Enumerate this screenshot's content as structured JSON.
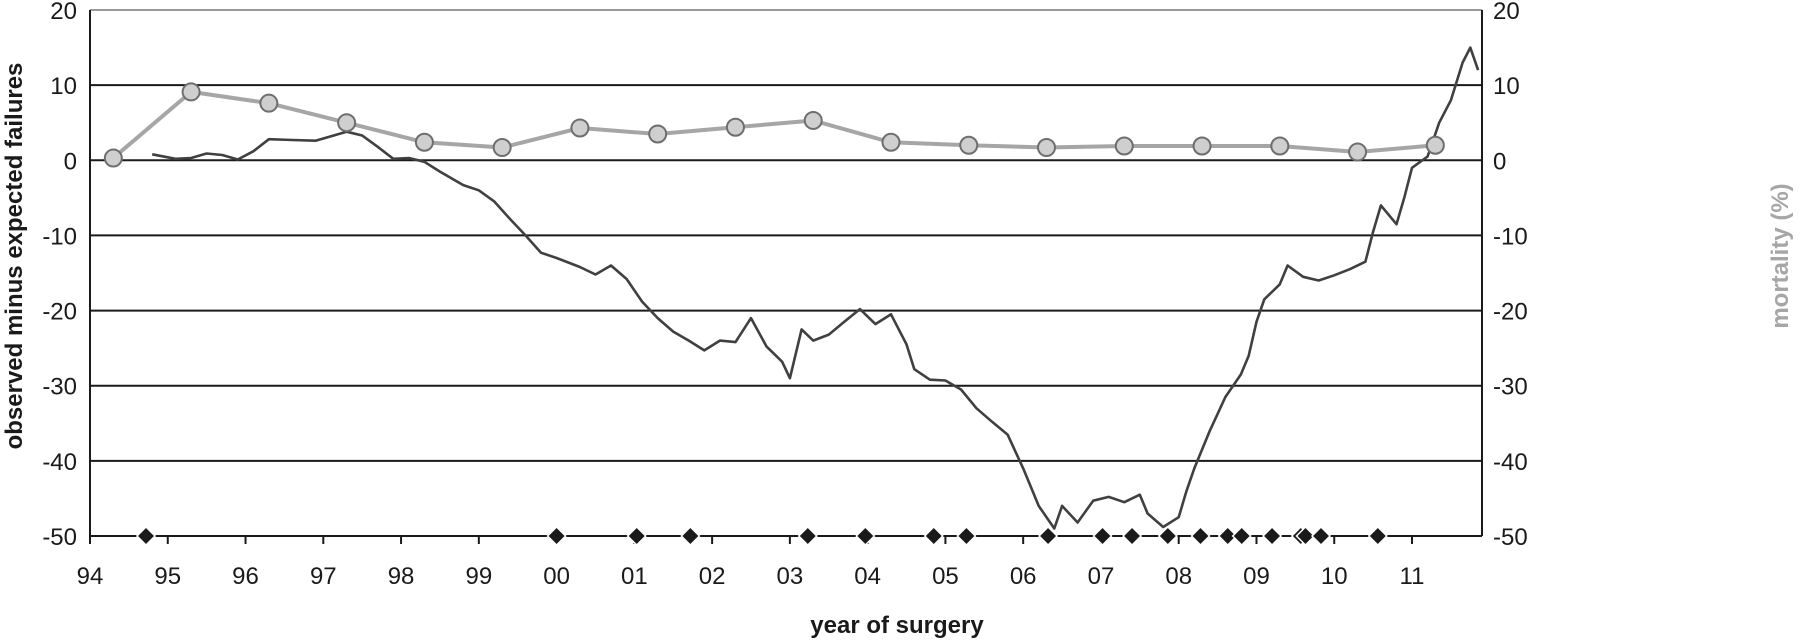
{
  "chart_data": {
    "type": "line",
    "title": "",
    "xlabel": "year of surgery",
    "ylabel_left": "observed minus expected failures",
    "ylabel_right": "mortality (%)",
    "ylim": [
      -50,
      20
    ],
    "y_ticks": [
      "20",
      "10",
      "0",
      "-10",
      "-20",
      "-30",
      "-40",
      "-50"
    ],
    "y_ticks_right": [
      "20",
      "10",
      "0",
      "-10",
      "-20",
      "-30",
      "-40",
      "-50"
    ],
    "x_range": [
      1994,
      2011.9
    ],
    "x_ticks": [
      {
        "label": "94",
        "x": 1994
      },
      {
        "label": "95",
        "x": 1995
      },
      {
        "label": "96",
        "x": 1996
      },
      {
        "label": "97",
        "x": 1997
      },
      {
        "label": "98",
        "x": 1998
      },
      {
        "label": "99",
        "x": 1999
      },
      {
        "label": "00",
        "x": 2000
      },
      {
        "label": "01",
        "x": 2001
      },
      {
        "label": "02",
        "x": 2002
      },
      {
        "label": "03",
        "x": 2003
      },
      {
        "label": "04",
        "x": 2004
      },
      {
        "label": "05",
        "x": 2005
      },
      {
        "label": "06",
        "x": 2006
      },
      {
        "label": "07",
        "x": 2007
      },
      {
        "label": "08",
        "x": 2008
      },
      {
        "label": "09",
        "x": 2009
      },
      {
        "label": "10",
        "x": 2010
      },
      {
        "label": "11",
        "x": 2011
      }
    ],
    "grid": true,
    "series": [
      {
        "role": "cusum",
        "color": "#404040",
        "points": [
          [
            1994.8,
            0.8
          ],
          [
            1995.1,
            0.2
          ],
          [
            1995.3,
            0.3
          ],
          [
            1995.5,
            0.9
          ],
          [
            1995.7,
            0.7
          ],
          [
            1995.9,
            0.1
          ],
          [
            1996.1,
            1.2
          ],
          [
            1996.3,
            2.8
          ],
          [
            1996.6,
            2.7
          ],
          [
            1996.9,
            2.6
          ],
          [
            1997.1,
            3.2
          ],
          [
            1997.3,
            3.8
          ],
          [
            1997.5,
            3.3
          ],
          [
            1997.7,
            1.8
          ],
          [
            1997.9,
            0.2
          ],
          [
            1998.1,
            0.3
          ],
          [
            1998.3,
            -0.2
          ],
          [
            1998.5,
            -1.5
          ],
          [
            1998.8,
            -3.3
          ],
          [
            1999.0,
            -4.0
          ],
          [
            1999.2,
            -5.5
          ],
          [
            1999.4,
            -7.8
          ],
          [
            1999.6,
            -10.0
          ],
          [
            1999.8,
            -12.3
          ],
          [
            2000.0,
            -13.0
          ],
          [
            2000.3,
            -14.2
          ],
          [
            2000.5,
            -15.2
          ],
          [
            2000.7,
            -14.0
          ],
          [
            2000.9,
            -15.8
          ],
          [
            2001.1,
            -18.8
          ],
          [
            2001.3,
            -21.0
          ],
          [
            2001.5,
            -22.8
          ],
          [
            2001.7,
            -24.0
          ],
          [
            2001.9,
            -25.3
          ],
          [
            2002.1,
            -24.0
          ],
          [
            2002.3,
            -24.2
          ],
          [
            2002.5,
            -21.0
          ],
          [
            2002.7,
            -24.8
          ],
          [
            2002.9,
            -26.8
          ],
          [
            2003.0,
            -29.0
          ],
          [
            2003.15,
            -22.5
          ],
          [
            2003.3,
            -24.0
          ],
          [
            2003.5,
            -23.2
          ],
          [
            2003.7,
            -21.5
          ],
          [
            2003.9,
            -19.8
          ],
          [
            2004.1,
            -21.8
          ],
          [
            2004.3,
            -20.5
          ],
          [
            2004.5,
            -24.5
          ],
          [
            2004.6,
            -27.8
          ],
          [
            2004.8,
            -29.2
          ],
          [
            2005.0,
            -29.3
          ],
          [
            2005.2,
            -30.5
          ],
          [
            2005.4,
            -33.0
          ],
          [
            2005.6,
            -34.8
          ],
          [
            2005.8,
            -36.5
          ],
          [
            2006.0,
            -41.0
          ],
          [
            2006.2,
            -46.0
          ],
          [
            2006.4,
            -49.0
          ],
          [
            2006.5,
            -46.0
          ],
          [
            2006.7,
            -48.2
          ],
          [
            2006.9,
            -45.3
          ],
          [
            2007.1,
            -44.8
          ],
          [
            2007.3,
            -45.5
          ],
          [
            2007.5,
            -44.5
          ],
          [
            2007.6,
            -47.0
          ],
          [
            2007.8,
            -48.8
          ],
          [
            2008.0,
            -47.5
          ],
          [
            2008.1,
            -44.0
          ],
          [
            2008.2,
            -41.0
          ],
          [
            2008.4,
            -36.0
          ],
          [
            2008.6,
            -31.5
          ],
          [
            2008.8,
            -28.5
          ],
          [
            2008.9,
            -26.0
          ],
          [
            2009.0,
            -21.5
          ],
          [
            2009.1,
            -18.5
          ],
          [
            2009.3,
            -16.5
          ],
          [
            2009.4,
            -14.0
          ],
          [
            2009.6,
            -15.5
          ],
          [
            2009.8,
            -16.0
          ],
          [
            2010.0,
            -15.3
          ],
          [
            2010.2,
            -14.5
          ],
          [
            2010.4,
            -13.5
          ],
          [
            2010.5,
            -9.5
          ],
          [
            2010.6,
            -6.0
          ],
          [
            2010.8,
            -8.5
          ],
          [
            2010.9,
            -5.0
          ],
          [
            2011.0,
            -1.0
          ],
          [
            2011.2,
            0.5
          ],
          [
            2011.35,
            5.0
          ],
          [
            2011.5,
            8.0
          ],
          [
            2011.65,
            13.0
          ],
          [
            2011.75,
            15.0
          ],
          [
            2011.85,
            12.0
          ]
        ]
      },
      {
        "role": "mortality",
        "color": "#a6a6a6",
        "marker": "circle",
        "points": [
          [
            1994.3,
            0.3
          ],
          [
            1995.3,
            9.1
          ],
          [
            1996.3,
            7.6
          ],
          [
            1997.3,
            5.0
          ],
          [
            1998.3,
            2.4
          ],
          [
            1999.3,
            1.7
          ],
          [
            2000.3,
            4.3
          ],
          [
            2001.3,
            3.5
          ],
          [
            2002.3,
            4.4
          ],
          [
            2003.3,
            5.3
          ],
          [
            2004.3,
            2.4
          ],
          [
            2005.3,
            2.0
          ],
          [
            2006.3,
            1.7
          ],
          [
            2007.3,
            1.9
          ],
          [
            2008.3,
            1.9
          ],
          [
            2009.3,
            1.9
          ],
          [
            2010.3,
            1.1
          ],
          [
            2011.3,
            2.0
          ]
        ]
      }
    ],
    "markers": {
      "shape": "diamond",
      "color": "#1a1a1a",
      "y": -50,
      "x": [
        1994.72,
        2000.0,
        2001.03,
        2001.72,
        2003.23,
        2003.97,
        2004.85,
        2005.27,
        2006.32,
        2007.02,
        2007.4,
        2007.86,
        2008.28,
        2008.63,
        2008.81,
        2009.2,
        2009.57,
        2009.63,
        2009.83,
        2010.56
      ]
    }
  }
}
